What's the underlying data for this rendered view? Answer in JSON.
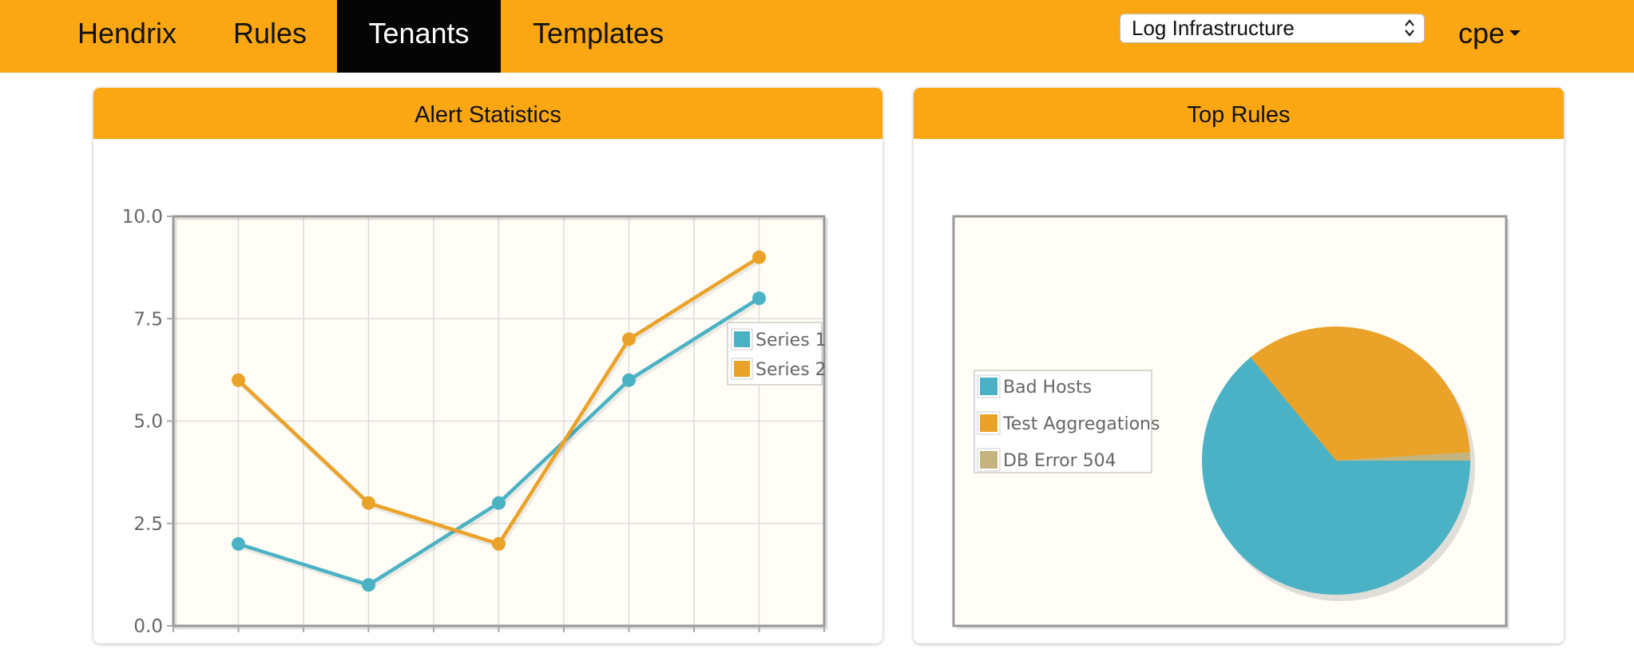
{
  "navbar": {
    "brand": "Hendrix",
    "items": [
      "Rules",
      "Tenants",
      "Templates"
    ],
    "active_item": "Tenants",
    "tenant_select": {
      "value": "Log Infrastructure"
    },
    "user_menu": {
      "label": "cpe"
    }
  },
  "colors": {
    "accent": "#fba714",
    "series1": "#4bb2c5",
    "series2": "#eaa228",
    "series3": "#c5b47f",
    "plot_bg": "#fffdf6"
  },
  "panels": {
    "alert_statistics": {
      "title": "Alert Statistics"
    },
    "top_rules": {
      "title": "Top Rules"
    }
  },
  "chart_data": [
    {
      "type": "line",
      "x": [
        1,
        2,
        3,
        4,
        5
      ],
      "series": [
        {
          "name": "Series 1",
          "values": [
            2,
            1,
            3,
            6,
            8
          ]
        },
        {
          "name": "Series 2",
          "values": [
            6,
            3,
            2,
            7,
            9
          ]
        }
      ],
      "xlim": [
        0.5,
        5.5
      ],
      "ylim": [
        0,
        10
      ],
      "xticks": [
        "0.5",
        "1.0",
        "1.5",
        "2.0",
        "2.5",
        "3.0",
        "3.5",
        "4.0",
        "4.5",
        "5.0",
        "5.5"
      ],
      "yticks": [
        "0.0",
        "2.5",
        "5.0",
        "7.5",
        "10.0"
      ],
      "grid": true,
      "legend": "east"
    },
    {
      "type": "pie",
      "labels": [
        "Bad Hosts",
        "Test Aggregations",
        "DB Error 504"
      ],
      "values": [
        64,
        35,
        1
      ],
      "legend": "west"
    }
  ]
}
